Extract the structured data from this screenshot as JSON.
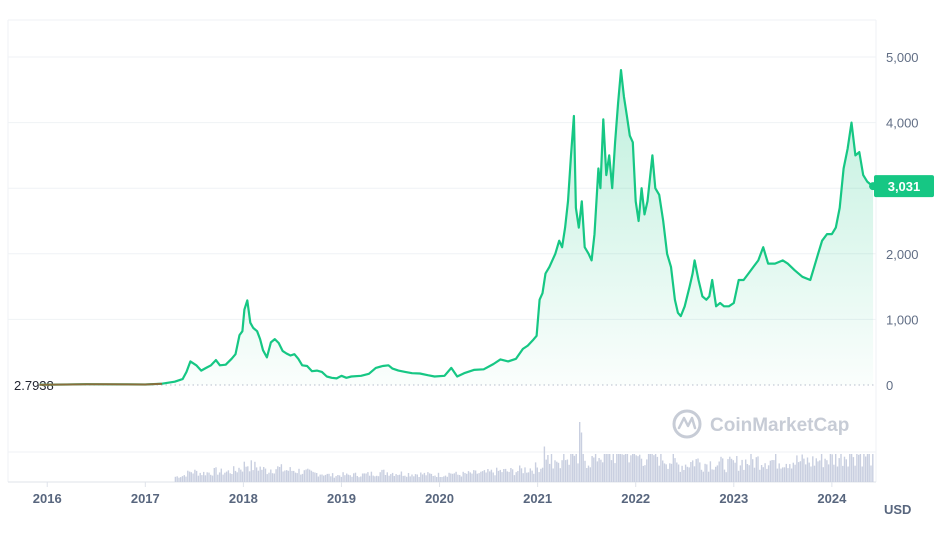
{
  "chart_data": {
    "type": "area",
    "title": "",
    "xlabel": "",
    "ylabel": "",
    "unit_label": "USD",
    "watermark": "CoinMarketCap",
    "baseline_label": "2.7938",
    "current_price_label": "3,031",
    "current_price": 3031,
    "colors": {
      "line": "#16c784",
      "fill": "#16c784",
      "early_line": "#8a6d3b",
      "tag_bg": "#16c784",
      "grid": "#eff2f5",
      "volume": "#c9cfe0"
    },
    "ylim": [
      0,
      5000
    ],
    "yticks": [
      {
        "value": 0,
        "label": "0"
      },
      {
        "value": 1000,
        "label": "1,000"
      },
      {
        "value": 2000,
        "label": "2,000"
      },
      {
        "value": 3000,
        "label": "3,000"
      },
      {
        "value": 4000,
        "label": "4,000"
      },
      {
        "value": 5000,
        "label": "5,000"
      }
    ],
    "xlim": [
      2015.6,
      2024.45
    ],
    "xticks": [
      {
        "value": 2016,
        "label": "2016"
      },
      {
        "value": 2017,
        "label": "2017"
      },
      {
        "value": 2018,
        "label": "2018"
      },
      {
        "value": 2019,
        "label": "2019"
      },
      {
        "value": 2020,
        "label": "2020"
      },
      {
        "value": 2021,
        "label": "2021"
      },
      {
        "value": 2022,
        "label": "2022"
      },
      {
        "value": 2023,
        "label": "2023"
      },
      {
        "value": 2024,
        "label": "2024"
      }
    ],
    "grid": true,
    "series": [
      {
        "points": [
          [
            2015.92,
            5
          ],
          [
            2016.2,
            8
          ],
          [
            2016.4,
            12
          ],
          [
            2016.6,
            10
          ],
          [
            2016.8,
            9
          ],
          [
            2017.0,
            8
          ],
          [
            2017.17,
            20
          ],
          [
            2017.3,
            50
          ],
          [
            2017.38,
            90
          ],
          [
            2017.42,
            200
          ],
          [
            2017.46,
            360
          ],
          [
            2017.52,
            300
          ],
          [
            2017.57,
            220
          ],
          [
            2017.62,
            260
          ],
          [
            2017.67,
            300
          ],
          [
            2017.72,
            380
          ],
          [
            2017.76,
            300
          ],
          [
            2017.82,
            310
          ],
          [
            2017.88,
            400
          ],
          [
            2017.92,
            470
          ],
          [
            2017.96,
            760
          ],
          [
            2017.99,
            820
          ],
          [
            2018.01,
            1150
          ],
          [
            2018.04,
            1290
          ],
          [
            2018.07,
            950
          ],
          [
            2018.1,
            870
          ],
          [
            2018.14,
            820
          ],
          [
            2018.17,
            700
          ],
          [
            2018.2,
            530
          ],
          [
            2018.24,
            420
          ],
          [
            2018.28,
            650
          ],
          [
            2018.32,
            700
          ],
          [
            2018.36,
            640
          ],
          [
            2018.4,
            520
          ],
          [
            2018.44,
            480
          ],
          [
            2018.48,
            450
          ],
          [
            2018.52,
            470
          ],
          [
            2018.56,
            400
          ],
          [
            2018.6,
            300
          ],
          [
            2018.65,
            290
          ],
          [
            2018.7,
            210
          ],
          [
            2018.75,
            220
          ],
          [
            2018.8,
            200
          ],
          [
            2018.85,
            130
          ],
          [
            2018.9,
            110
          ],
          [
            2018.95,
            100
          ],
          [
            2019.0,
            140
          ],
          [
            2019.05,
            110
          ],
          [
            2019.1,
            130
          ],
          [
            2019.2,
            140
          ],
          [
            2019.28,
            170
          ],
          [
            2019.35,
            260
          ],
          [
            2019.42,
            290
          ],
          [
            2019.48,
            300
          ],
          [
            2019.52,
            250
          ],
          [
            2019.58,
            220
          ],
          [
            2019.65,
            200
          ],
          [
            2019.72,
            180
          ],
          [
            2019.8,
            175
          ],
          [
            2019.88,
            150
          ],
          [
            2019.95,
            130
          ],
          [
            2020.05,
            140
          ],
          [
            2020.12,
            260
          ],
          [
            2020.18,
            130
          ],
          [
            2020.25,
            180
          ],
          [
            2020.35,
            230
          ],
          [
            2020.45,
            240
          ],
          [
            2020.55,
            320
          ],
          [
            2020.62,
            390
          ],
          [
            2020.7,
            360
          ],
          [
            2020.78,
            400
          ],
          [
            2020.85,
            550
          ],
          [
            2020.9,
            600
          ],
          [
            2020.95,
            680
          ],
          [
            2020.99,
            750
          ],
          [
            2021.02,
            1300
          ],
          [
            2021.05,
            1400
          ],
          [
            2021.08,
            1700
          ],
          [
            2021.12,
            1800
          ],
          [
            2021.18,
            2000
          ],
          [
            2021.22,
            2200
          ],
          [
            2021.25,
            2100
          ],
          [
            2021.28,
            2400
          ],
          [
            2021.31,
            2800
          ],
          [
            2021.34,
            3500
          ],
          [
            2021.37,
            4100
          ],
          [
            2021.39,
            2700
          ],
          [
            2021.42,
            2400
          ],
          [
            2021.45,
            2800
          ],
          [
            2021.48,
            2100
          ],
          [
            2021.52,
            2000
          ],
          [
            2021.55,
            1900
          ],
          [
            2021.58,
            2300
          ],
          [
            2021.62,
            3300
          ],
          [
            2021.64,
            3000
          ],
          [
            2021.67,
            4050
          ],
          [
            2021.7,
            3200
          ],
          [
            2021.73,
            3500
          ],
          [
            2021.76,
            3000
          ],
          [
            2021.79,
            3700
          ],
          [
            2021.82,
            4300
          ],
          [
            2021.85,
            4800
          ],
          [
            2021.88,
            4400
          ],
          [
            2021.91,
            4100
          ],
          [
            2021.94,
            3800
          ],
          [
            2021.97,
            3700
          ],
          [
            2022.0,
            2800
          ],
          [
            2022.03,
            2500
          ],
          [
            2022.06,
            3000
          ],
          [
            2022.09,
            2600
          ],
          [
            2022.12,
            2800
          ],
          [
            2022.17,
            3500
          ],
          [
            2022.2,
            3000
          ],
          [
            2022.24,
            2900
          ],
          [
            2022.28,
            2500
          ],
          [
            2022.32,
            2000
          ],
          [
            2022.36,
            1800
          ],
          [
            2022.4,
            1300
          ],
          [
            2022.43,
            1100
          ],
          [
            2022.46,
            1050
          ],
          [
            2022.5,
            1200
          ],
          [
            2022.55,
            1500
          ],
          [
            2022.58,
            1700
          ],
          [
            2022.6,
            1900
          ],
          [
            2022.64,
            1600
          ],
          [
            2022.68,
            1350
          ],
          [
            2022.72,
            1300
          ],
          [
            2022.75,
            1350
          ],
          [
            2022.78,
            1600
          ],
          [
            2022.82,
            1200
          ],
          [
            2022.86,
            1250
          ],
          [
            2022.9,
            1200
          ],
          [
            2022.95,
            1200
          ],
          [
            2023.0,
            1250
          ],
          [
            2023.05,
            1600
          ],
          [
            2023.1,
            1600
          ],
          [
            2023.15,
            1700
          ],
          [
            2023.2,
            1800
          ],
          [
            2023.25,
            1900
          ],
          [
            2023.3,
            2100
          ],
          [
            2023.35,
            1850
          ],
          [
            2023.42,
            1850
          ],
          [
            2023.5,
            1900
          ],
          [
            2023.55,
            1850
          ],
          [
            2023.62,
            1750
          ],
          [
            2023.7,
            1650
          ],
          [
            2023.78,
            1600
          ],
          [
            2023.82,
            1800
          ],
          [
            2023.86,
            2000
          ],
          [
            2023.9,
            2200
          ],
          [
            2023.95,
            2300
          ],
          [
            2024.0,
            2300
          ],
          [
            2024.04,
            2400
          ],
          [
            2024.08,
            2700
          ],
          [
            2024.12,
            3300
          ],
          [
            2024.16,
            3600
          ],
          [
            2024.2,
            4000
          ],
          [
            2024.24,
            3500
          ],
          [
            2024.28,
            3550
          ],
          [
            2024.32,
            3200
          ],
          [
            2024.36,
            3100
          ],
          [
            2024.4,
            3050
          ],
          [
            2024.42,
            3031
          ]
        ]
      }
    ]
  }
}
